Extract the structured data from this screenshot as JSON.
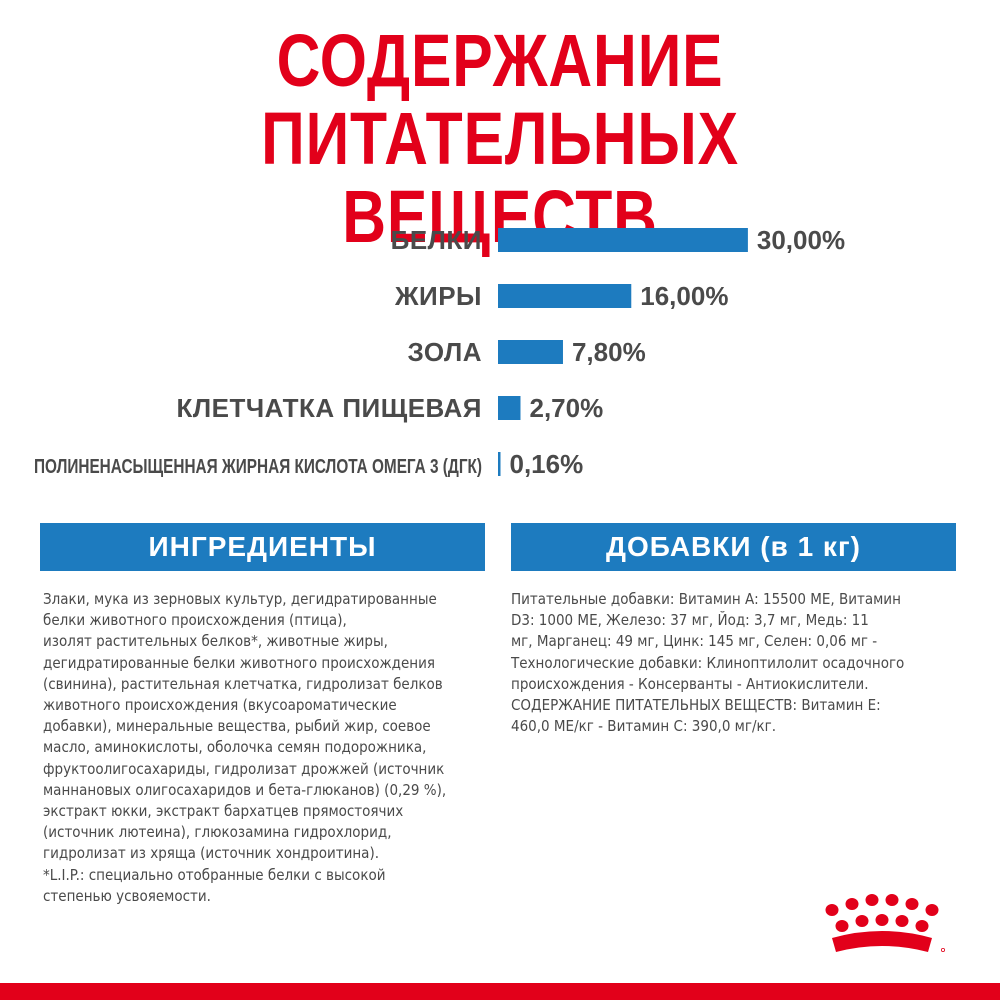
{
  "title_line1": "СОДЕРЖАНИЕ ПИТАТЕЛЬНЫХ",
  "title_line2": "ВЕЩЕСТВ",
  "chart_data": {
    "type": "bar",
    "orientation": "horizontal",
    "categories": [
      "БЕЛКИ",
      "ЖИРЫ",
      "ЗОЛА",
      "КЛЕТЧАТКА ПИЩЕВАЯ",
      "ПОЛИНЕНАСЫЩЕННАЯ ЖИРНАЯ КИСЛОТА ОМЕГА 3 (ДГК)"
    ],
    "values": [
      30.0,
      16.0,
      7.8,
      2.7,
      0.16
    ],
    "value_labels": [
      "30,00%",
      "16,00%",
      "7,80%",
      "2,70%",
      "0,16%"
    ],
    "unit": "%",
    "bar_color": "#1d7bbf",
    "grid": false
  },
  "ingredients": {
    "heading": "ИНГРЕДИЕНТЫ",
    "text": "Злаки, мука из зерновых культур, дегидратированные\nбелки животного происхождения (птица),\nизолят растительных белков*, животные жиры,\nдегидратированные белки животного происхождения\n(свинина), растительная клетчатка, гидролизат белков\nживотного происхождения (вкусоароматические\nдобавки), минеральные вещества, рыбий жир, соевое\nмасло, аминокислоты, оболочка семян подорожника,\nфруктоолигосахариды, гидролизат дрожжей (источник\nманнановых олигосахаридов и бета-глюканов) (0,29 %),\nэкстракт юкки, экстракт бархатцев прямостоячих\n(источник лютеина), глюкозамина гидрохлорид,\nгидролизат из хряща (источник хондроитина).\n*L.I.P.: специально отобранные белки с высокой\nстепенью усвояемости."
  },
  "additives": {
    "heading": "ДОБАВКИ (в 1 кг)",
    "text": "Питательные добавки: Витамин А: 15500 МЕ, Витамин\nD3: 1000 МЕ, Железо: 37 мг, Йод: 3,7 мг, Медь: 11\nмг, Марганец: 49 мг, Цинк: 145 мг, Селен: 0,06 мг -\nТехнологические добавки: Клиноптилолит осадочного\nпроисхождения - Консерванты - Антиокислители.\nСОДЕРЖАНИЕ ПИТАТЕЛЬНЫХ ВЕЩЕСТВ: Витамин Е:\n460,0 МЕ/кг - Витамин С: 390,0 мг/кг."
  },
  "colors": {
    "title": "#e2001a",
    "accent": "#1d7bbf",
    "brand_red": "#e2001a",
    "text": "#4a4a4a"
  },
  "logo_icon": "royal-canin-crown-logo"
}
